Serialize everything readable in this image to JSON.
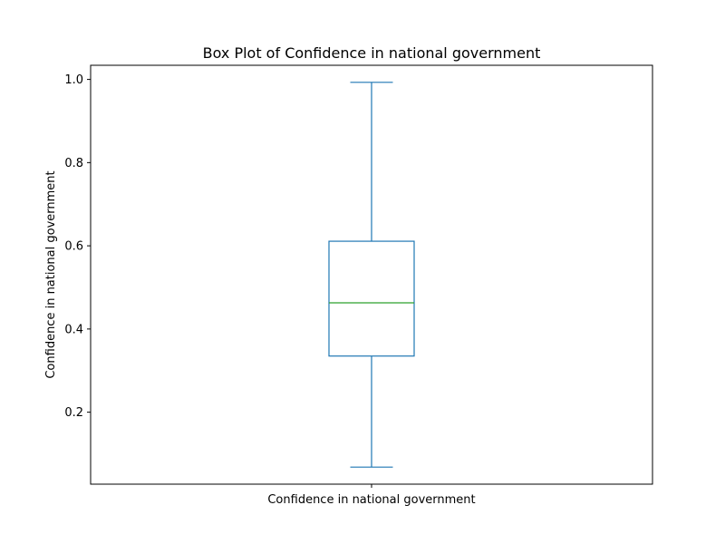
{
  "chart_data": {
    "type": "box",
    "title": "Box Plot of Confidence in national government",
    "xlabel": "",
    "ylabel": "Confidence in national government",
    "categories": [
      "Confidence in national government"
    ],
    "boxes": [
      {
        "category": "Confidence in national government",
        "whisker_low": 0.068,
        "q1": 0.335,
        "median": 0.463,
        "q3": 0.611,
        "whisker_high": 0.993
      }
    ],
    "ylim": [
      0.027,
      1.034
    ],
    "yticks": [
      0.2,
      0.4,
      0.6,
      0.8,
      1.0
    ],
    "ytick_labels": [
      "0.2",
      "0.4",
      "0.6",
      "0.8",
      "1.0"
    ],
    "grid": false,
    "colors": {
      "box": "#1f77b4",
      "median": "#2ca02c",
      "axes": "#000000"
    }
  }
}
